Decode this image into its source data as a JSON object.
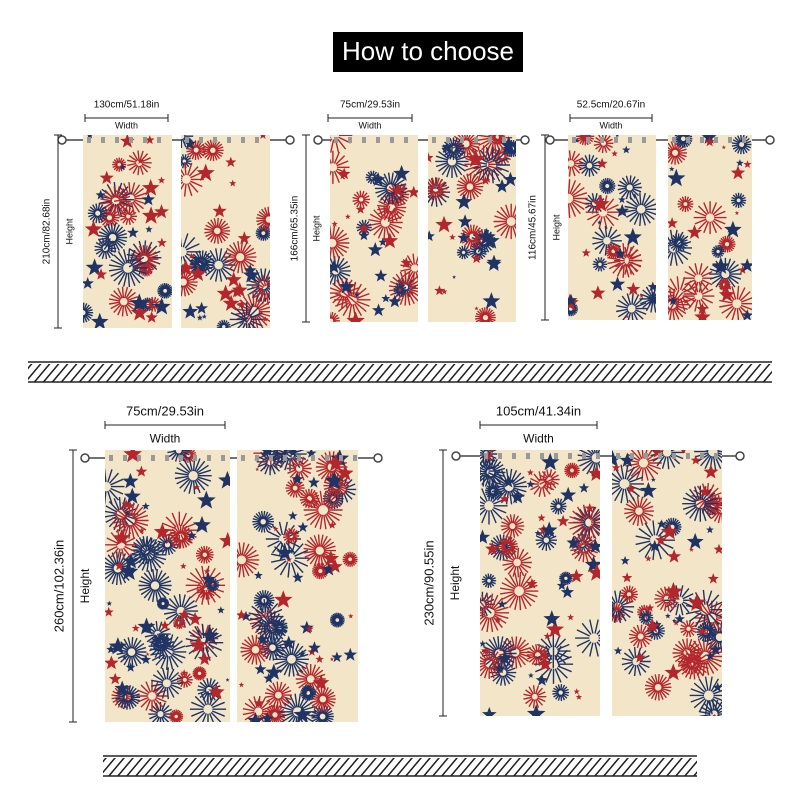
{
  "header": {
    "title": "How to choose"
  },
  "sizes": [
    {
      "width": "130cm/51.18in",
      "width_caption": "Width",
      "height": "210cm/82.68in",
      "height_caption": "Height"
    },
    {
      "width": "75cm/29.53in",
      "width_caption": "Width",
      "height": "166cm/65.35in",
      "height_caption": "Height"
    },
    {
      "width": "52.5cm/20.67in",
      "width_caption": "Width",
      "height": "116cm/45.67in",
      "height_caption": "Height"
    },
    {
      "width": "75cm/29.53in",
      "width_caption": "Width",
      "height": "260cm/102.36in",
      "height_caption": "Height"
    },
    {
      "width": "105cm/41.34in",
      "width_caption": "Width",
      "height": "230cm/90.55in",
      "height_caption": "Height"
    }
  ]
}
